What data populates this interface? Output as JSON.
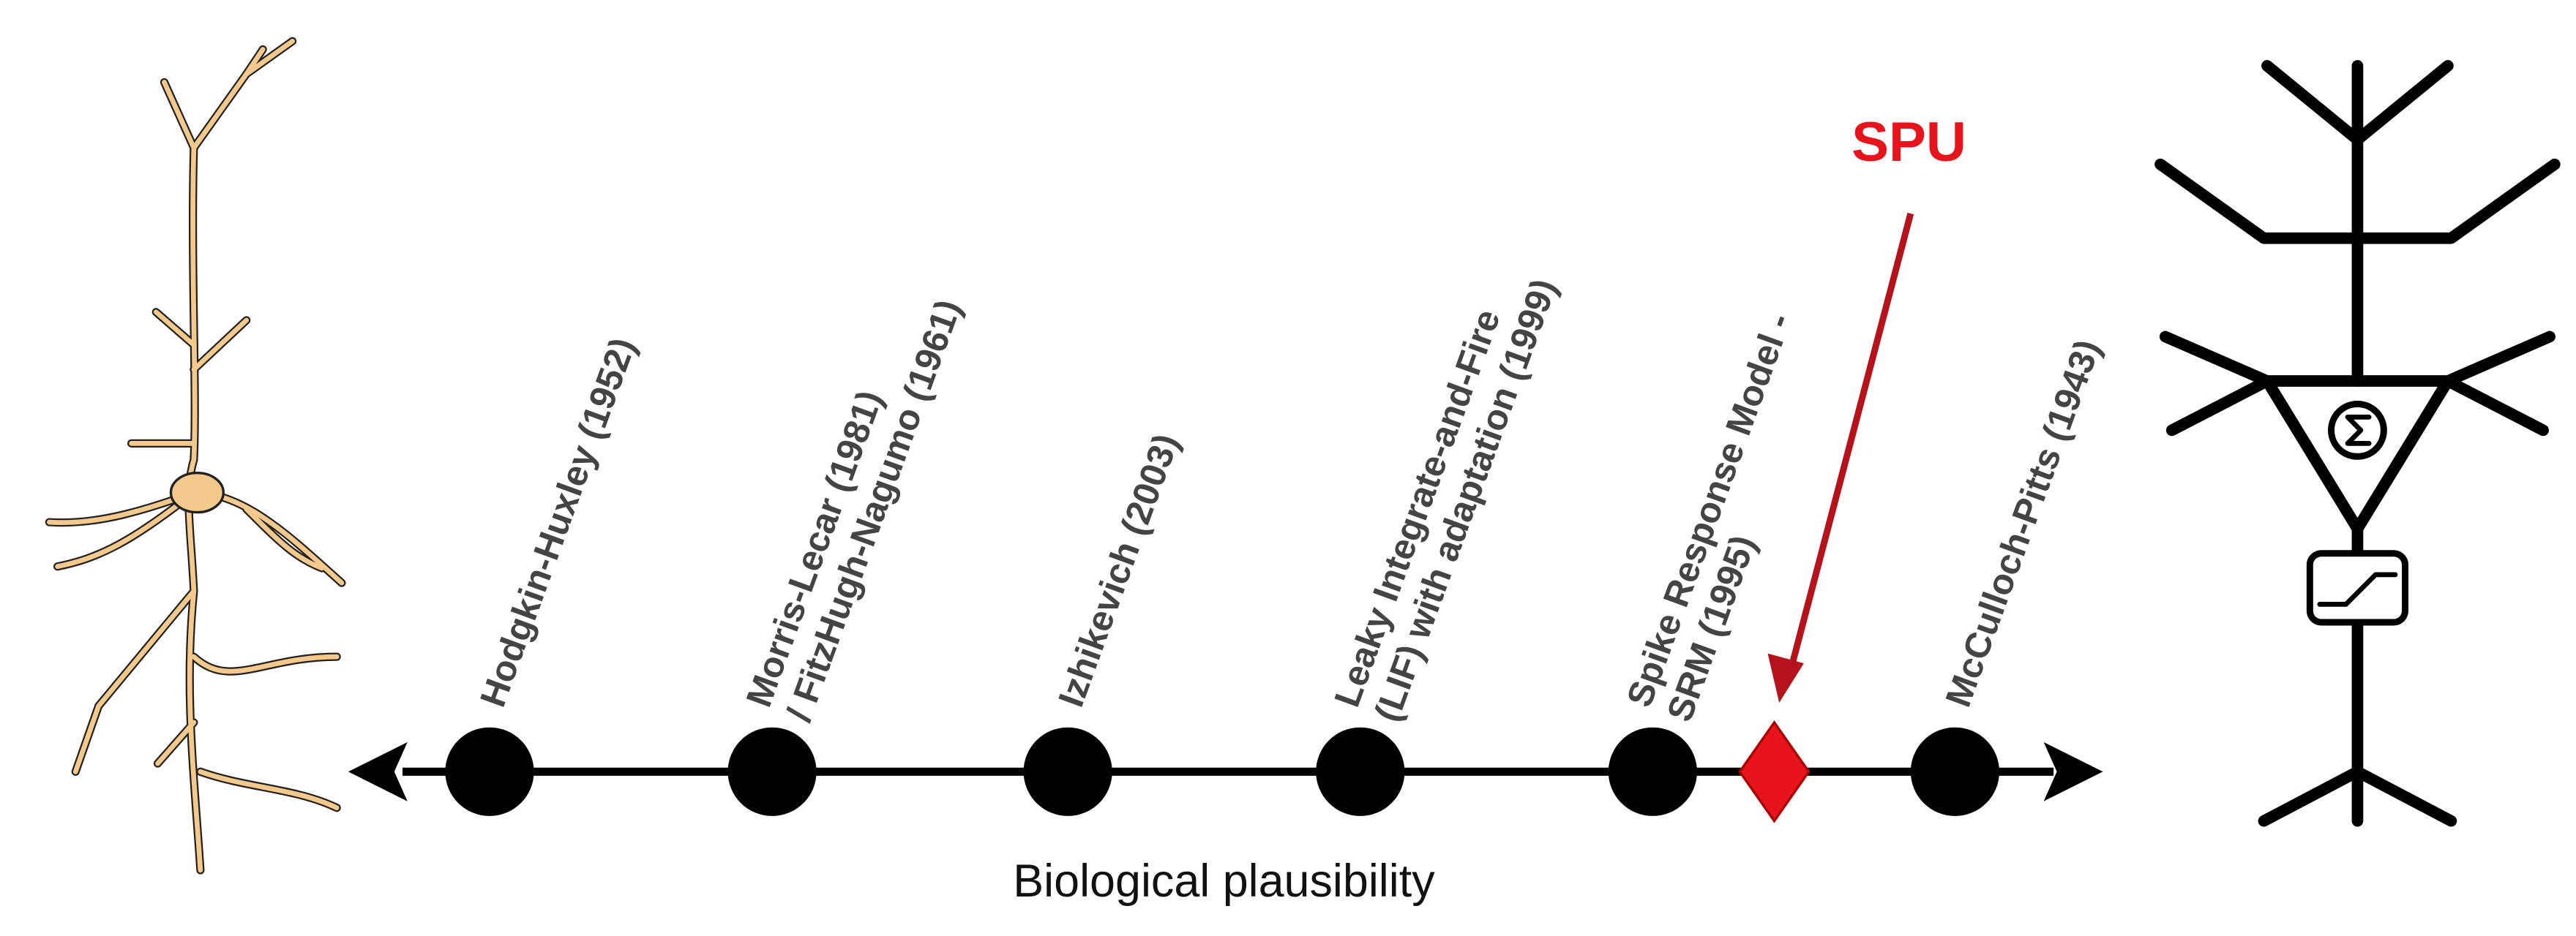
{
  "axis_label": "Biological plausibility",
  "highlight": {
    "label": "SPU"
  },
  "models": [
    {
      "lines": [
        "Hodgkin-Huxley (1952)"
      ]
    },
    {
      "lines": [
        "Morris-Lecar (1981)",
        "/ FitzHugh-Nagumo (1961)"
      ]
    },
    {
      "lines": [
        "Izhikevich (2003)"
      ]
    },
    {
      "lines": [
        "Leaky Integrate-and-Fire",
        "(LIF) with adaptation (1999)"
      ]
    },
    {
      "lines": [
        "Spike Response Model -",
        "SRM (1995)"
      ]
    },
    {
      "lines": [
        "McCulloch-Pitts (1943)"
      ]
    }
  ]
}
